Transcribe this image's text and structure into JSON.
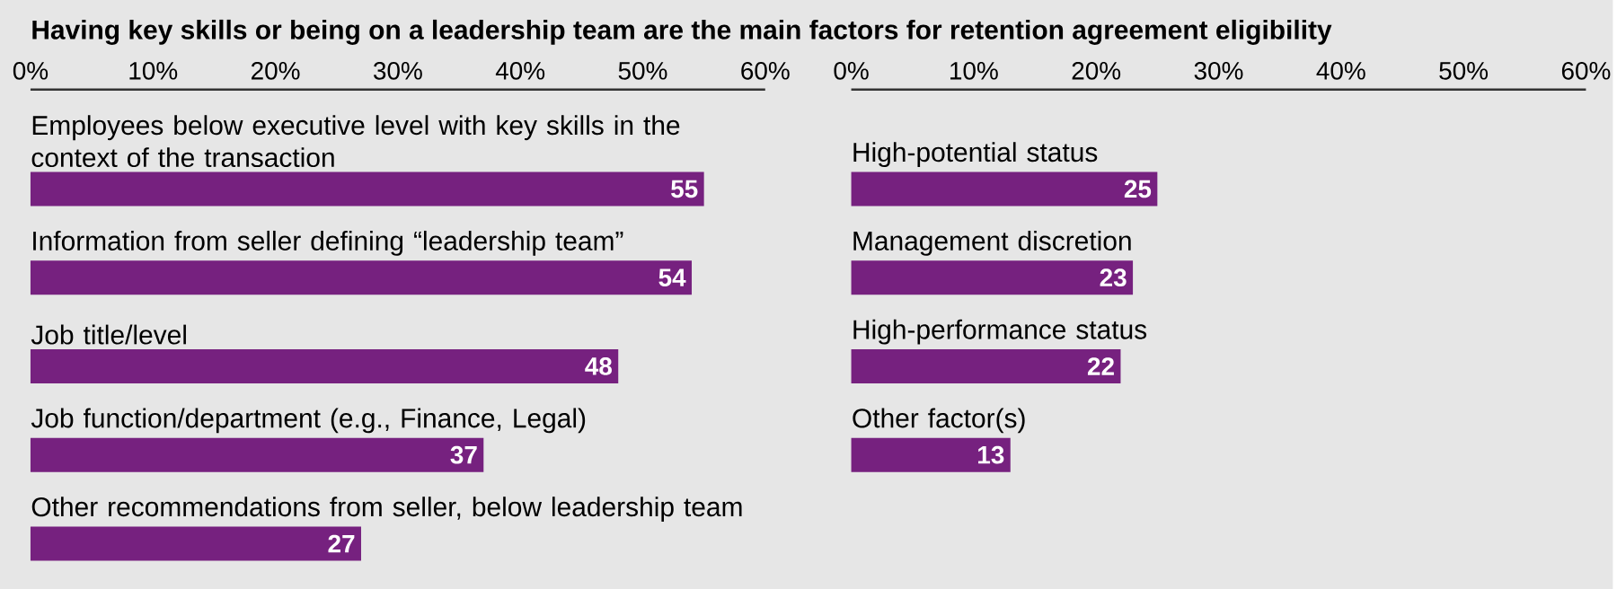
{
  "chart_data": [
    {
      "type": "bar",
      "orientation": "horizontal",
      "title": "Having key skills or being on a leadership team are the main factors for retention agreement eligibility",
      "categories": [
        "Employees below executive level with key skills in the context of the transaction",
        "Information from seller defining “leadership team”",
        "Job title/level",
        "Job function/department (e.g., Finance, Legal)",
        "Other recommendations from seller, below leadership team"
      ],
      "values": [
        55,
        54,
        48,
        37,
        27
      ],
      "color": "#76217f",
      "data_labels": true,
      "xlim": [
        0,
        60
      ],
      "xticks": [
        {
          "value": 0,
          "label": "0%"
        },
        {
          "value": 10,
          "label": "10%"
        },
        {
          "value": 20,
          "label": "20%"
        },
        {
          "value": 30,
          "label": "30%"
        },
        {
          "value": 40,
          "label": "40%"
        },
        {
          "value": 50,
          "label": "50%"
        },
        {
          "value": 60,
          "label": "60%"
        }
      ]
    },
    {
      "type": "bar",
      "orientation": "horizontal",
      "categories": [
        "High-potential status",
        "Management discretion",
        "High-performance status",
        "Other factor(s)"
      ],
      "values": [
        25,
        23,
        22,
        13
      ],
      "color": "#76217f",
      "data_labels": true,
      "xlim": [
        0,
        60
      ],
      "xticks": [
        {
          "value": 0,
          "label": "0%"
        },
        {
          "value": 10,
          "label": "10%"
        },
        {
          "value": 20,
          "label": "20%"
        },
        {
          "value": 30,
          "label": "30%"
        },
        {
          "value": 40,
          "label": "40%"
        },
        {
          "value": 50,
          "label": "50%"
        },
        {
          "value": 60,
          "label": "60%"
        }
      ]
    }
  ]
}
